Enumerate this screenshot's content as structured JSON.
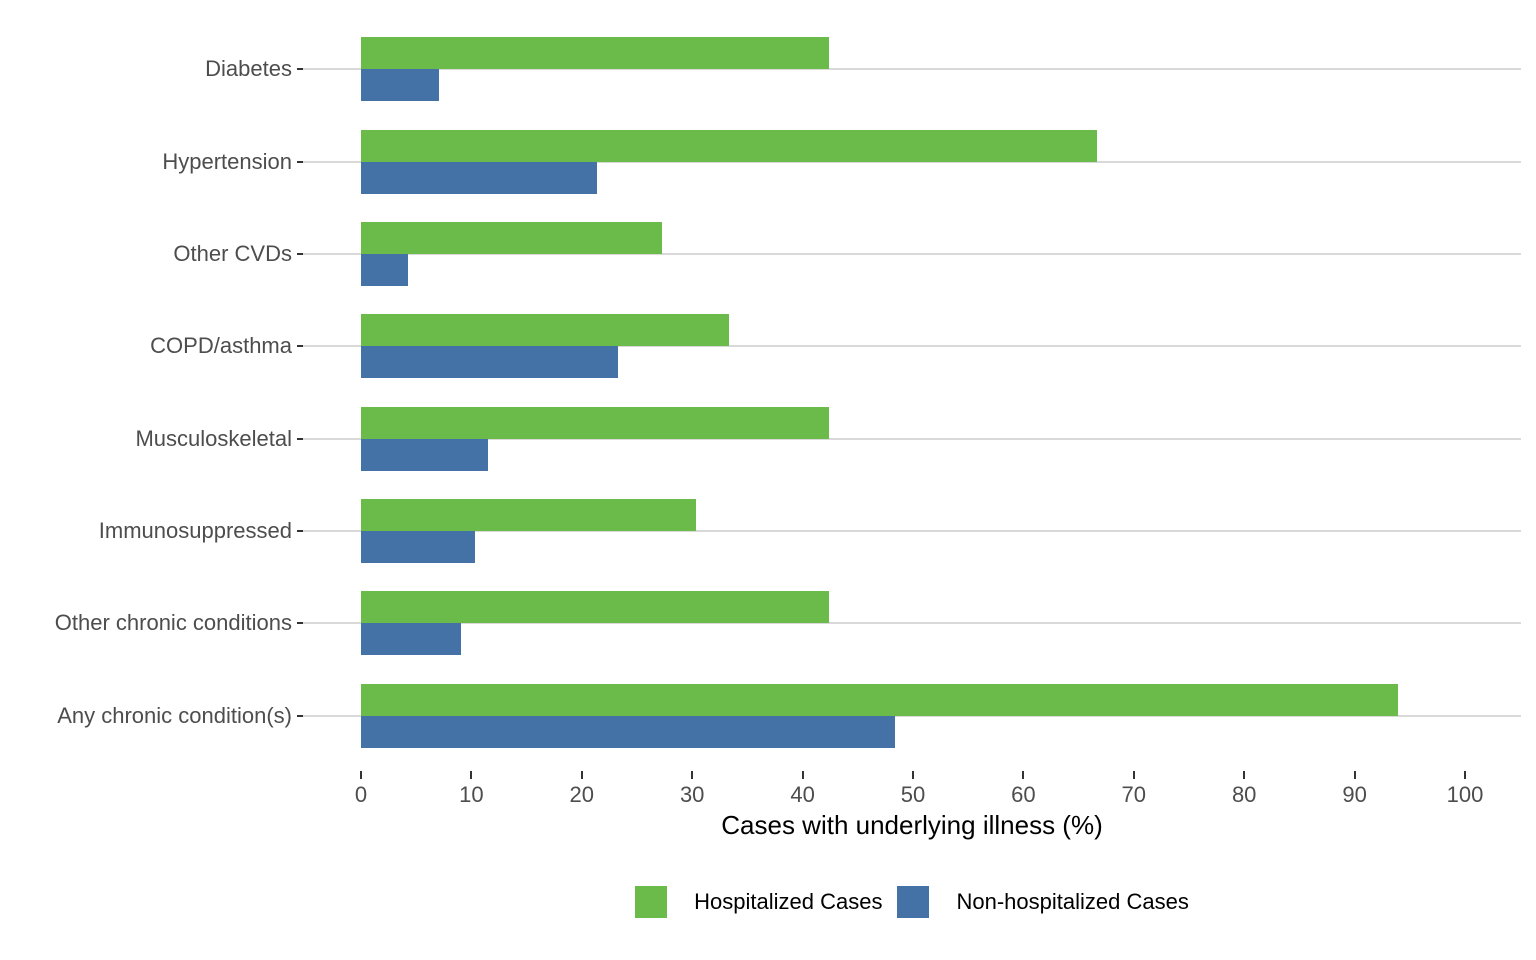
{
  "chart_data": {
    "type": "bar",
    "orientation": "horizontal",
    "title": "",
    "xlabel": "Cases with underlying illness (%)",
    "ylabel": "",
    "categories": [
      "Diabetes",
      "Hypertension",
      "Other CVDs",
      "COPD/asthma",
      "Musculoskeletal",
      "Immunosuppressed",
      "Other chronic conditions",
      "Any chronic condition(s)"
    ],
    "series": [
      {
        "name": "Hospitalized Cases",
        "color": "#6abb4a",
        "values": [
          42.4,
          66.7,
          27.3,
          33.3,
          42.4,
          30.3,
          42.4,
          93.9
        ]
      },
      {
        "name": "Non-hospitalized Cases",
        "color": "#4471a6",
        "values": [
          7.1,
          21.4,
          4.3,
          23.3,
          11.5,
          10.3,
          9.1,
          48.4
        ]
      }
    ],
    "x_ticks": [
      0,
      10,
      20,
      30,
      40,
      50,
      60,
      70,
      80,
      90,
      100
    ],
    "xlim": [
      0,
      100
    ],
    "grid": "horizontal category gridlines only",
    "legend_position": "bottom",
    "colors": {
      "gridline": "#d9d9d9",
      "tick_mark": "#333333",
      "axis_text": "#4d4d4d",
      "title_text": "#000000",
      "background": "#ffffff"
    }
  }
}
